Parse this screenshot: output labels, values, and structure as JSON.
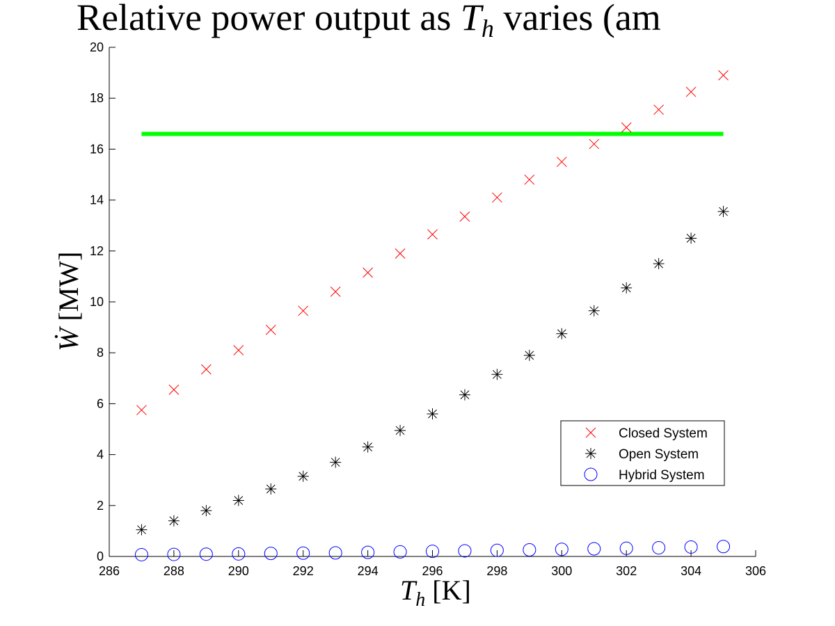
{
  "chart_data": {
    "type": "scatter",
    "title": "Relative power output as T_h varies (am",
    "xlabel": "T_h [K]",
    "ylabel": "Ẇ [MW]",
    "xlim": [
      286,
      306
    ],
    "ylim": [
      0,
      20
    ],
    "xticks": [
      "286",
      "288",
      "290",
      "292",
      "294",
      "296",
      "298",
      "300",
      "302",
      "304",
      "306"
    ],
    "yticks": [
      "0",
      "2",
      "4",
      "6",
      "8",
      "10",
      "12",
      "14",
      "16",
      "18",
      "20"
    ],
    "x": [
      287,
      288,
      289,
      290,
      291,
      292,
      293,
      294,
      295,
      296,
      297,
      298,
      299,
      300,
      301,
      302,
      303,
      304,
      305
    ],
    "series": [
      {
        "name": "Closed System",
        "marker": "x",
        "color": "#ff0000",
        "values": [
          5.75,
          6.55,
          7.35,
          8.1,
          8.9,
          9.65,
          10.4,
          11.15,
          11.9,
          12.65,
          13.35,
          14.1,
          14.8,
          15.5,
          16.2,
          16.85,
          17.55,
          18.25,
          18.9
        ]
      },
      {
        "name": "Open System",
        "marker": "asterisk",
        "color": "#000000",
        "values": [
          1.05,
          1.4,
          1.8,
          2.2,
          2.65,
          3.15,
          3.7,
          4.3,
          4.95,
          5.6,
          6.35,
          7.15,
          7.9,
          8.75,
          9.65,
          10.55,
          11.5,
          12.5,
          13.55
        ]
      },
      {
        "name": "Hybrid System",
        "marker": "circle",
        "color": "#0000ff",
        "values": [
          0.07,
          0.08,
          0.09,
          0.1,
          0.12,
          0.13,
          0.14,
          0.16,
          0.18,
          0.2,
          0.22,
          0.24,
          0.26,
          0.28,
          0.3,
          0.32,
          0.34,
          0.37,
          0.39
        ]
      }
    ],
    "reference_line": {
      "color": "#00ff00",
      "value": 16.6,
      "x_range": [
        287,
        305
      ]
    },
    "legend_position": "lower-right",
    "grid": false
  }
}
